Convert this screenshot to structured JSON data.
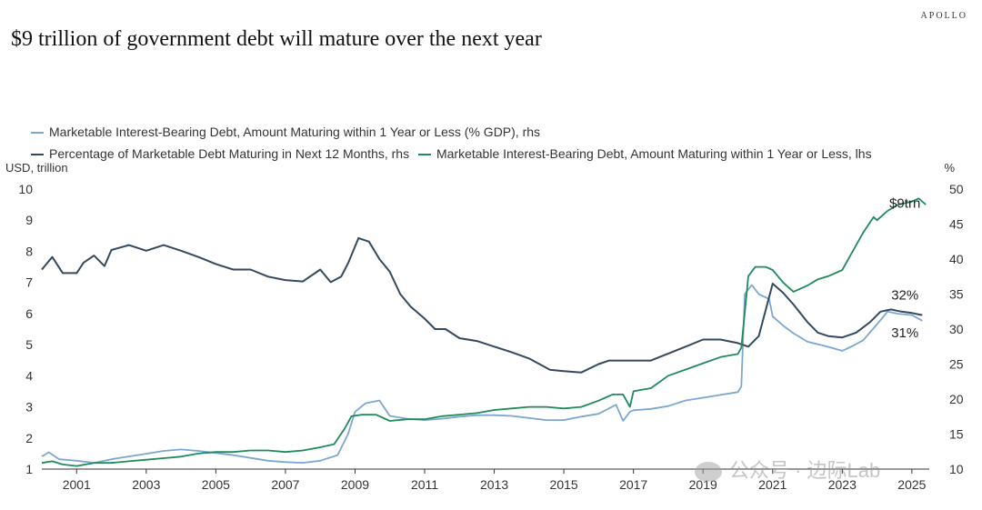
{
  "brand": "APOLLO",
  "title": "$9 trillion of government debt will mature over the next year",
  "watermark": "公众号 · 边际Lab",
  "chart_data": {
    "type": "line",
    "title": "$9 trillion of government debt will mature over the next year",
    "left_axis": {
      "label": "USD, trillion",
      "range": [
        1,
        10
      ],
      "ticks": [
        "1",
        "2",
        "3",
        "4",
        "5",
        "6",
        "7",
        "8",
        "9",
        "10"
      ]
    },
    "right_axis": {
      "label": "%",
      "range": [
        10,
        50
      ],
      "ticks": [
        "10",
        "15",
        "20",
        "25",
        "30",
        "35",
        "40",
        "45",
        "50"
      ]
    },
    "x_axis": {
      "range": [
        2000.0,
        2025.5
      ],
      "ticks": [
        "2001",
        "2003",
        "2005",
        "2007",
        "2009",
        "2011",
        "2013",
        "2015",
        "2017",
        "2019",
        "2021",
        "2023",
        "2025"
      ]
    },
    "legend": [
      {
        "name": "Marketable Interest-Bearing Debt, Amount Maturing within 1 Year or Less (% GDP), rhs",
        "color": "#7ba7d1"
      },
      {
        "name": "Percentage of Marketable Debt Maturing in Next 12 Months, rhs",
        "color": "#34495e"
      },
      {
        "name": "Marketable Interest-Bearing Debt, Amount Maturing within 1 Year or Less, lhs",
        "color": "#1f8a5b"
      }
    ],
    "annotations": [
      {
        "text": "$9trn",
        "x": 2024.8,
        "y": 9.4,
        "axis": "left"
      },
      {
        "text": "32%",
        "x": 2024.8,
        "y": 34.2,
        "axis": "right"
      },
      {
        "text": "31%",
        "x": 2024.8,
        "y": 28.8,
        "axis": "right"
      }
    ],
    "series": [
      {
        "name": "Marketable Interest-Bearing Debt, Amount Maturing within 1 Year or Less (% GDP), rhs",
        "axis": "right",
        "color": "#7ba7d1",
        "x": [
          2000.0,
          2000.2,
          2000.5,
          2001.0,
          2001.5,
          2002.0,
          2002.5,
          2003.0,
          2003.5,
          2004.0,
          2004.5,
          2005.0,
          2005.5,
          2006.0,
          2006.5,
          2007.0,
          2007.5,
          2008.0,
          2008.5,
          2008.8,
          2009.0,
          2009.3,
          2009.7,
          2010.0,
          2010.5,
          2011.0,
          2011.5,
          2012.0,
          2012.5,
          2013.0,
          2013.5,
          2014.0,
          2014.5,
          2015.0,
          2015.5,
          2016.0,
          2016.5,
          2016.7,
          2016.9,
          2017.0,
          2017.5,
          2018.0,
          2018.5,
          2019.0,
          2019.5,
          2020.0,
          2020.1,
          2020.2,
          2020.4,
          2020.6,
          2020.9,
          2021.0,
          2021.3,
          2021.6,
          2022.0,
          2022.5,
          2023.0,
          2023.3,
          2023.6,
          2024.0,
          2024.3,
          2024.6,
          2025.0,
          2025.3
        ],
        "y": [
          11.8,
          12.4,
          11.4,
          11.2,
          10.9,
          11.4,
          11.8,
          12.2,
          12.6,
          12.8,
          12.6,
          12.3,
          12.0,
          11.6,
          11.2,
          11.0,
          10.9,
          11.2,
          12.0,
          15.0,
          18.2,
          19.4,
          19.8,
          17.6,
          17.2,
          17.0,
          17.2,
          17.5,
          17.7,
          17.7,
          17.6,
          17.3,
          17.0,
          17.0,
          17.5,
          17.9,
          19.2,
          16.9,
          18.2,
          18.4,
          18.6,
          19.0,
          19.8,
          20.2,
          20.6,
          21.0,
          21.8,
          35.0,
          36.3,
          35.0,
          34.3,
          31.8,
          30.5,
          29.4,
          28.2,
          27.6,
          26.9,
          27.6,
          28.4,
          30.7,
          32.5,
          32.2,
          32.0,
          31.2
        ]
      },
      {
        "name": "Percentage of Marketable Debt Maturing in Next 12 Months, rhs",
        "axis": "right",
        "color": "#34495e",
        "x": [
          2000.0,
          2000.3,
          2000.6,
          2001.0,
          2001.2,
          2001.5,
          2001.8,
          2002.0,
          2002.5,
          2003.0,
          2003.5,
          2004.0,
          2004.5,
          2005.0,
          2005.5,
          2006.0,
          2006.5,
          2007.0,
          2007.5,
          2008.0,
          2008.3,
          2008.6,
          2008.8,
          2009.1,
          2009.4,
          2009.7,
          2010.0,
          2010.3,
          2010.6,
          2011.0,
          2011.3,
          2011.6,
          2012.0,
          2012.5,
          2013.0,
          2013.5,
          2014.0,
          2014.3,
          2014.6,
          2015.0,
          2015.5,
          2016.0,
          2016.3,
          2016.6,
          2017.0,
          2017.5,
          2018.0,
          2018.5,
          2019.0,
          2019.5,
          2020.0,
          2020.3,
          2020.6,
          2021.0,
          2021.3,
          2021.6,
          2022.0,
          2022.3,
          2022.6,
          2023.0,
          2023.4,
          2023.8,
          2024.1,
          2024.4,
          2024.7,
          2025.0,
          2025.3
        ],
        "y": [
          38.5,
          40.3,
          38.0,
          38.0,
          39.5,
          40.5,
          39.0,
          41.3,
          42.0,
          41.2,
          42.0,
          41.2,
          40.3,
          39.3,
          38.5,
          38.5,
          37.5,
          37.0,
          36.8,
          38.5,
          36.7,
          37.5,
          39.4,
          43.0,
          42.5,
          40.0,
          38.2,
          35.0,
          33.2,
          31.5,
          30.0,
          30.0,
          28.7,
          28.3,
          27.5,
          26.7,
          25.8,
          25.0,
          24.2,
          24.0,
          23.8,
          25.0,
          25.5,
          25.5,
          25.5,
          25.5,
          26.5,
          27.5,
          28.5,
          28.5,
          28.0,
          27.5,
          29.0,
          36.5,
          35.2,
          33.5,
          31.0,
          29.5,
          29.0,
          28.8,
          29.5,
          31.0,
          32.5,
          32.8,
          32.5,
          32.3,
          32.0
        ]
      },
      {
        "name": "Marketable Interest-Bearing Debt, Amount Maturing within 1 Year or Less, lhs",
        "axis": "left",
        "color": "#1f8a5b",
        "x": [
          2000.0,
          2000.3,
          2000.6,
          2001.0,
          2001.5,
          2002.0,
          2002.5,
          2003.0,
          2003.5,
          2004.0,
          2004.5,
          2005.0,
          2005.5,
          2006.0,
          2006.5,
          2007.0,
          2007.5,
          2008.0,
          2008.4,
          2008.7,
          2008.9,
          2009.2,
          2009.6,
          2010.0,
          2010.5,
          2011.0,
          2011.5,
          2012.0,
          2012.5,
          2013.0,
          2013.5,
          2014.0,
          2014.5,
          2015.0,
          2015.5,
          2016.0,
          2016.4,
          2016.7,
          2016.9,
          2017.0,
          2017.5,
          2018.0,
          2018.5,
          2019.0,
          2019.5,
          2020.0,
          2020.1,
          2020.3,
          2020.5,
          2020.8,
          2021.0,
          2021.3,
          2021.6,
          2022.0,
          2022.3,
          2022.6,
          2023.0,
          2023.3,
          2023.6,
          2023.9,
          2024.0,
          2024.3,
          2024.6,
          2025.0,
          2025.2,
          2025.4
        ],
        "y": [
          1.2,
          1.25,
          1.15,
          1.1,
          1.2,
          1.2,
          1.25,
          1.3,
          1.35,
          1.4,
          1.5,
          1.55,
          1.55,
          1.6,
          1.6,
          1.55,
          1.6,
          1.7,
          1.8,
          2.3,
          2.7,
          2.75,
          2.75,
          2.55,
          2.6,
          2.6,
          2.7,
          2.75,
          2.8,
          2.9,
          2.95,
          3.0,
          3.0,
          2.95,
          3.0,
          3.2,
          3.4,
          3.4,
          3.0,
          3.5,
          3.6,
          4.0,
          4.2,
          4.4,
          4.6,
          4.7,
          4.9,
          7.2,
          7.5,
          7.5,
          7.4,
          7.0,
          6.7,
          6.9,
          7.1,
          7.2,
          7.4,
          8.0,
          8.6,
          9.1,
          9.0,
          9.3,
          9.5,
          9.6,
          9.7,
          9.5
        ]
      }
    ]
  }
}
